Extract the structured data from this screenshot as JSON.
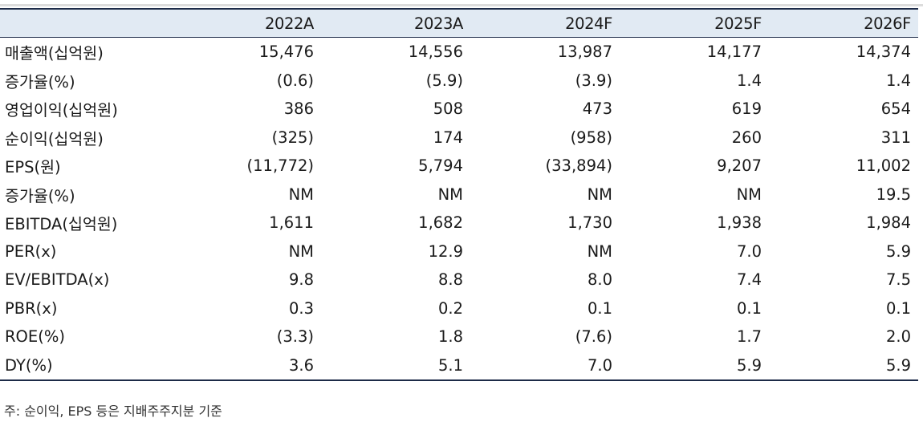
{
  "table": {
    "headers": [
      "",
      "2022A",
      "2023A",
      "2024F",
      "2025F",
      "2026F"
    ],
    "rows": [
      {
        "label": "매출액(십억원)",
        "values": [
          "15,476",
          "14,556",
          "13,987",
          "14,177",
          "14,374"
        ]
      },
      {
        "label": "증가율(%)",
        "values": [
          "(0.6)",
          "(5.9)",
          "(3.9)",
          "1.4",
          "1.4"
        ]
      },
      {
        "label": "영업이익(십억원)",
        "values": [
          "386",
          "508",
          "473",
          "619",
          "654"
        ]
      },
      {
        "label": "순이익(십억원)",
        "values": [
          "(325)",
          "174",
          "(958)",
          "260",
          "311"
        ]
      },
      {
        "label": "EPS(원)",
        "values": [
          "(11,772)",
          "5,794",
          "(33,894)",
          "9,207",
          "11,002"
        ]
      },
      {
        "label": "증가율(%)",
        "values": [
          "NM",
          "NM",
          "NM",
          "NM",
          "19.5"
        ]
      },
      {
        "label": "EBITDA(십억원)",
        "values": [
          "1,611",
          "1,682",
          "1,730",
          "1,938",
          "1,984"
        ]
      },
      {
        "label": "PER(x)",
        "values": [
          "NM",
          "12.9",
          "NM",
          "7.0",
          "5.9"
        ]
      },
      {
        "label": "EV/EBITDA(x)",
        "values": [
          "9.8",
          "8.8",
          "8.0",
          "7.4",
          "7.5"
        ]
      },
      {
        "label": "PBR(x)",
        "values": [
          "0.3",
          "0.2",
          "0.1",
          "0.1",
          "0.1"
        ]
      },
      {
        "label": "ROE(%)",
        "values": [
          "(3.3)",
          "1.8",
          "(7.6)",
          "1.7",
          "2.0"
        ]
      },
      {
        "label": "DY(%)",
        "values": [
          "3.6",
          "5.1",
          "7.0",
          "5.9",
          "5.9"
        ]
      }
    ]
  },
  "footnote": "주: 순이익, EPS 등은 지배주주지분 기준",
  "colors": {
    "header_bg": "#e1eaf3",
    "rule": "#1d2b48"
  }
}
